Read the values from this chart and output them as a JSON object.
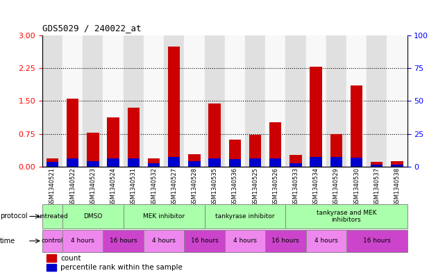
{
  "title": "GDS5029 / 240022_at",
  "samples": [
    "GSM1340521",
    "GSM1340522",
    "GSM1340523",
    "GSM1340524",
    "GSM1340531",
    "GSM1340532",
    "GSM1340527",
    "GSM1340528",
    "GSM1340535",
    "GSM1340536",
    "GSM1340525",
    "GSM1340526",
    "GSM1340533",
    "GSM1340534",
    "GSM1340529",
    "GSM1340530",
    "GSM1340537",
    "GSM1340538"
  ],
  "red_values": [
    0.18,
    1.55,
    0.77,
    1.12,
    1.35,
    0.18,
    2.75,
    0.28,
    1.45,
    0.62,
    0.72,
    1.02,
    0.27,
    2.28,
    0.75,
    1.85,
    0.1,
    0.13
  ],
  "blue_pct": [
    3.5,
    6.0,
    4.0,
    6.0,
    6.0,
    2.3,
    7.5,
    4.0,
    6.0,
    5.5,
    6.0,
    6.0,
    2.5,
    7.5,
    7.5,
    6.5,
    1.5,
    1.5
  ],
  "ylim_left": [
    0,
    3.0
  ],
  "ylim_right": [
    0,
    100
  ],
  "yticks_left": [
    0,
    0.75,
    1.5,
    2.25,
    3.0
  ],
  "yticks_right": [
    0,
    25,
    50,
    75,
    100
  ],
  "bar_color_red": "#cc0000",
  "bar_color_blue": "#0000cc",
  "bar_width": 0.6,
  "protocol_groups": [
    [
      0,
      1,
      "untreated"
    ],
    [
      1,
      4,
      "DMSO"
    ],
    [
      4,
      8,
      "MEK inhibitor"
    ],
    [
      8,
      12,
      "tankyrase inhibitor"
    ],
    [
      12,
      18,
      "tankyrase and MEK\ninhibitors"
    ]
  ],
  "time_groups": [
    [
      0,
      1,
      "control"
    ],
    [
      1,
      3,
      "4 hours"
    ],
    [
      3,
      5,
      "16 hours"
    ],
    [
      5,
      7,
      "4 hours"
    ],
    [
      7,
      9,
      "16 hours"
    ],
    [
      9,
      11,
      "4 hours"
    ],
    [
      11,
      13,
      "16 hours"
    ],
    [
      13,
      15,
      "4 hours"
    ],
    [
      15,
      18,
      "16 hours"
    ]
  ],
  "protocol_bg": "#aaffaa",
  "protocol_border": "#888888",
  "time_bg_light": "#ee88ee",
  "time_bg_dark": "#cc44cc",
  "legend_count": "count",
  "legend_pct": "percentile rank within the sample",
  "col_bg_even": "#e0e0e0",
  "col_bg_odd": "#f8f8f8"
}
